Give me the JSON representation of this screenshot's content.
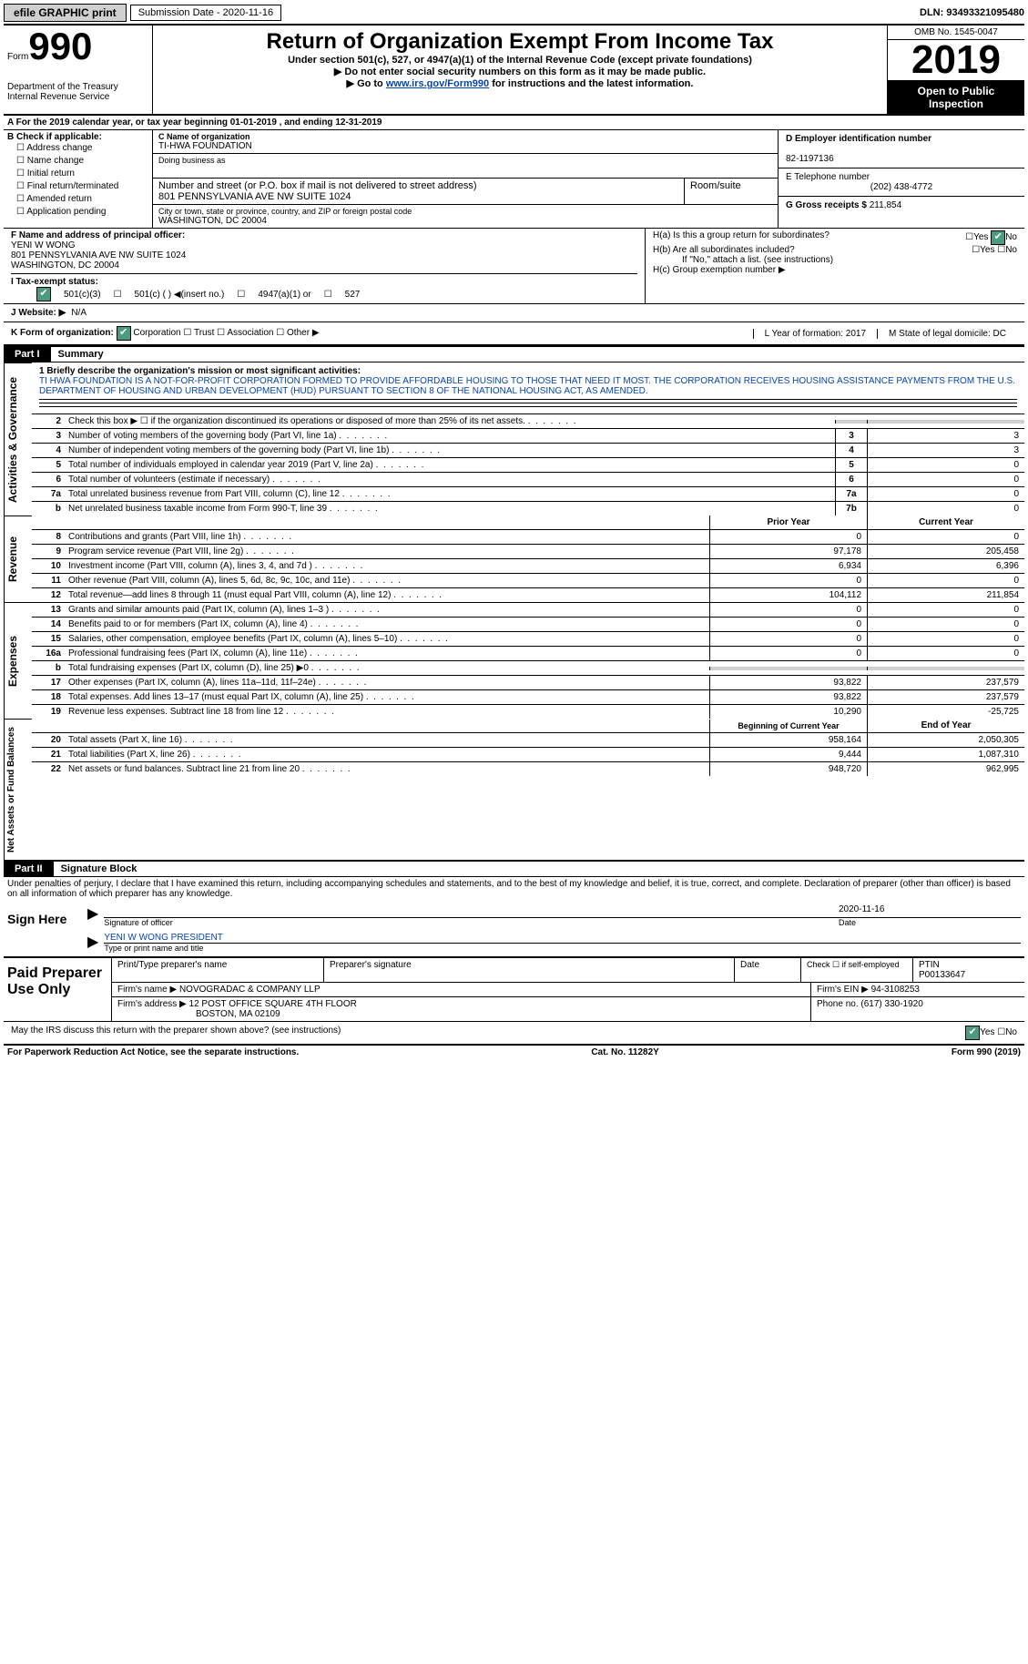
{
  "topbar": {
    "efile": "efile GRAPHIC print",
    "submission_label": "Submission Date - 2020-11-16",
    "dln": "DLN: 93493321095480"
  },
  "header": {
    "form_small": "Form",
    "form_big": "990",
    "dept": "Department of the Treasury\nInternal Revenue Service",
    "title": "Return of Organization Exempt From Income Tax",
    "under": "Under section 501(c), 527, or 4947(a)(1) of the Internal Revenue Code (except private foundations)",
    "no_ssn": "▶ Do not enter social security numbers on this form as it may be made public.",
    "goto_pre": "▶ Go to ",
    "goto_link": "www.irs.gov/Form990",
    "goto_post": " for instructions and the latest information.",
    "omb": "OMB No. 1545-0047",
    "year": "2019",
    "open": "Open to Public Inspection"
  },
  "period": "A For the 2019 calendar year, or tax year beginning 01-01-2019    , and ending 12-31-2019",
  "sectionB": {
    "hdr": "B Check if applicable:",
    "opts": [
      "Address change",
      "Name change",
      "Initial return",
      "Final return/terminated",
      "Amended return",
      "Application pending"
    ]
  },
  "sectionC": {
    "name_lbl": "C Name of organization",
    "name": "TI-HWA FOUNDATION",
    "dba_lbl": "Doing business as",
    "addr_lbl": "Number and street (or P.O. box if mail is not delivered to street address)",
    "addr": "801 PENNSYLVANIA AVE NW SUITE 1024",
    "room_lbl": "Room/suite",
    "city_lbl": "City or town, state or province, country, and ZIP or foreign postal code",
    "city": "WASHINGTON, DC  20004"
  },
  "sectionD": {
    "ein_lbl": "D Employer identification number",
    "ein": "82-1197136",
    "tel_lbl": "E Telephone number",
    "tel": "(202) 438-4772",
    "gross_lbl": "G Gross receipts $",
    "gross": "211,854"
  },
  "sectionF": {
    "lbl": "F Name and address of principal officer:",
    "name": "YENI W WONG",
    "addr1": "801 PENNSYLVANIA AVE NW SUITE 1024",
    "addr2": "WASHINGTON, DC  20004"
  },
  "sectionH": {
    "a": "H(a)  Is this a group return for subordinates?",
    "b": "H(b)  Are all subordinates included?",
    "note": "If \"No,\" attach a list. (see instructions)",
    "c": "H(c)  Group exemption number ▶"
  },
  "sectionI": {
    "lbl": "I   Tax-exempt status:",
    "opt1": "501(c)(3)",
    "opt2": "501(c) (  ) ◀(insert no.)",
    "opt3": "4947(a)(1) or",
    "opt4": "527"
  },
  "sectionJ": {
    "lbl": "J   Website: ▶",
    "val": "N/A"
  },
  "sectionK": {
    "lbl": "K Form of organization:",
    "o1": "Corporation",
    "o2": "Trust",
    "o3": "Association",
    "o4": "Other ▶",
    "L": "L Year of formation: 2017",
    "M": "M State of legal domicile: DC"
  },
  "part1": {
    "num": "Part I",
    "title": "Summary"
  },
  "mission": {
    "q1": "1  Briefly describe the organization's mission or most significant activities:",
    "text": "TI HWA FOUNDATION IS A NOT-FOR-PROFIT CORPORATION FORMED TO PROVIDE AFFORDABLE HOUSING TO THOSE THAT NEED IT MOST. THE CORPORATION RECEIVES HOUSING ASSISTANCE PAYMENTS FROM THE U.S. DEPARTMENT OF HOUSING AND URBAN DEVELOPMENT (HUD) PURSUANT TO SECTION 8 OF THE NATIONAL HOUSING ACT, AS AMENDED."
  },
  "gov_lines": [
    {
      "n": "2",
      "d": "Check this box ▶ ☐  if the organization discontinued its operations or disposed of more than 25% of its net assets.",
      "box": "",
      "v": ""
    },
    {
      "n": "3",
      "d": "Number of voting members of the governing body (Part VI, line 1a)",
      "box": "3",
      "v": "3"
    },
    {
      "n": "4",
      "d": "Number of independent voting members of the governing body (Part VI, line 1b)",
      "box": "4",
      "v": "3"
    },
    {
      "n": "5",
      "d": "Total number of individuals employed in calendar year 2019 (Part V, line 2a)",
      "box": "5",
      "v": "0"
    },
    {
      "n": "6",
      "d": "Total number of volunteers (estimate if necessary)",
      "box": "6",
      "v": "0"
    },
    {
      "n": "7a",
      "d": "Total unrelated business revenue from Part VIII, column (C), line 12",
      "box": "7a",
      "v": "0"
    },
    {
      "n": "b",
      "d": "Net unrelated business taxable income from Form 990-T, line 39",
      "box": "7b",
      "v": "0"
    }
  ],
  "col_hdr": {
    "prior": "Prior Year",
    "current": "Current Year"
  },
  "rev_lines": [
    {
      "n": "8",
      "d": "Contributions and grants (Part VIII, line 1h)",
      "p": "0",
      "c": "0"
    },
    {
      "n": "9",
      "d": "Program service revenue (Part VIII, line 2g)",
      "p": "97,178",
      "c": "205,458"
    },
    {
      "n": "10",
      "d": "Investment income (Part VIII, column (A), lines 3, 4, and 7d )",
      "p": "6,934",
      "c": "6,396"
    },
    {
      "n": "11",
      "d": "Other revenue (Part VIII, column (A), lines 5, 6d, 8c, 9c, 10c, and 11e)",
      "p": "0",
      "c": "0"
    },
    {
      "n": "12",
      "d": "Total revenue—add lines 8 through 11 (must equal Part VIII, column (A), line 12)",
      "p": "104,112",
      "c": "211,854"
    }
  ],
  "exp_lines": [
    {
      "n": "13",
      "d": "Grants and similar amounts paid (Part IX, column (A), lines 1–3 )",
      "p": "0",
      "c": "0"
    },
    {
      "n": "14",
      "d": "Benefits paid to or for members (Part IX, column (A), line 4)",
      "p": "0",
      "c": "0"
    },
    {
      "n": "15",
      "d": "Salaries, other compensation, employee benefits (Part IX, column (A), lines 5–10)",
      "p": "0",
      "c": "0"
    },
    {
      "n": "16a",
      "d": "Professional fundraising fees (Part IX, column (A), line 11e)",
      "p": "0",
      "c": "0"
    },
    {
      "n": "b",
      "d": "Total fundraising expenses (Part IX, column (D), line 25) ▶0",
      "p": "SHADE",
      "c": "SHADE"
    },
    {
      "n": "17",
      "d": "Other expenses (Part IX, column (A), lines 11a–11d, 11f–24e)",
      "p": "93,822",
      "c": "237,579"
    },
    {
      "n": "18",
      "d": "Total expenses. Add lines 13–17 (must equal Part IX, column (A), line 25)",
      "p": "93,822",
      "c": "237,579"
    },
    {
      "n": "19",
      "d": "Revenue less expenses. Subtract line 18 from line 12",
      "p": "10,290",
      "c": "-25,725"
    }
  ],
  "net_hdr": {
    "p": "Beginning of Current Year",
    "c": "End of Year"
  },
  "net_lines": [
    {
      "n": "20",
      "d": "Total assets (Part X, line 16)",
      "p": "958,164",
      "c": "2,050,305"
    },
    {
      "n": "21",
      "d": "Total liabilities (Part X, line 26)",
      "p": "9,444",
      "c": "1,087,310"
    },
    {
      "n": "22",
      "d": "Net assets or fund balances. Subtract line 21 from line 20",
      "p": "948,720",
      "c": "962,995"
    }
  ],
  "part2": {
    "num": "Part II",
    "title": "Signature Block"
  },
  "sig": {
    "penalty": "Under penalties of perjury, I declare that I have examined this return, including accompanying schedules and statements, and to the best of my knowledge and belief, it is true, correct, and complete. Declaration of preparer (other than officer) is based on all information of which preparer has any knowledge.",
    "here": "Sign Here",
    "officer_lbl": "Signature of officer",
    "date_lbl": "Date",
    "date": "2020-11-16",
    "name": "YENI W WONG PRESIDENT",
    "name_lbl": "Type or print name and title"
  },
  "prep": {
    "label": "Paid Preparer Use Only",
    "h1": "Print/Type preparer's name",
    "h2": "Preparer's signature",
    "h3": "Date",
    "h4": "Check ☐ if self-employed",
    "h5_lbl": "PTIN",
    "h5": "P00133647",
    "firm_lbl": "Firm's name    ▶",
    "firm": "NOVOGRADAC & COMPANY LLP",
    "ein_lbl": "Firm's EIN ▶",
    "ein": "94-3108253",
    "addr_lbl": "Firm's address ▶",
    "addr1": "12 POST OFFICE SQUARE 4TH FLOOR",
    "addr2": "BOSTON, MA  02109",
    "phone_lbl": "Phone no.",
    "phone": "(617) 330-1920"
  },
  "discuss": "May the IRS discuss this return with the preparer shown above? (see instructions)",
  "footer": {
    "l": "For Paperwork Reduction Act Notice, see the separate instructions.",
    "m": "Cat. No. 11282Y",
    "r": "Form 990 (2019)"
  },
  "side_labels": {
    "gov": "Activities & Governance",
    "rev": "Revenue",
    "exp": "Expenses",
    "net": "Net Assets or Fund Balances"
  }
}
